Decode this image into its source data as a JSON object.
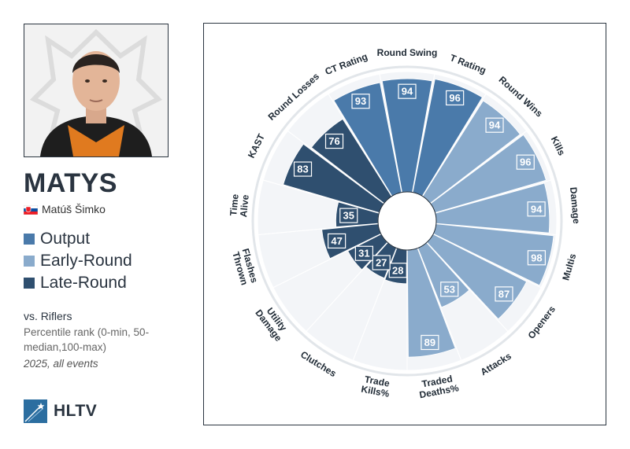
{
  "player": {
    "nickname": "MATYS",
    "full_name": "Matúš Šimko",
    "country_flag": "slovakia-flag"
  },
  "legend": [
    {
      "label": "Output",
      "color": "#4a7aaa"
    },
    {
      "label": "Early-Round",
      "color": "#8aabcc"
    },
    {
      "label": "Late-Round",
      "color": "#2f4f6f"
    }
  ],
  "comparison": "vs. Riflers",
  "description": "Percentile rank (0-min, 50-median,100-max)",
  "period": "2025, all events",
  "brand": "HLTV",
  "chart_data": {
    "type": "polar-bar",
    "range": [
      0,
      100
    ],
    "categories": [
      {
        "label": "Round Swing",
        "value": 94,
        "group": "Output"
      },
      {
        "label": "T Rating",
        "value": 96,
        "group": "Output"
      },
      {
        "label": "Round Wins",
        "value": 94,
        "group": "Early-Round"
      },
      {
        "label": "Kills",
        "value": 96,
        "group": "Early-Round"
      },
      {
        "label": "Damage",
        "value": 94,
        "group": "Early-Round"
      },
      {
        "label": "Multis",
        "value": 98,
        "group": "Early-Round"
      },
      {
        "label": "Openers",
        "value": 87,
        "group": "Early-Round"
      },
      {
        "label": "Attacks",
        "value": 53,
        "group": "Early-Round"
      },
      {
        "label": "Traded Deaths%",
        "value": 89,
        "group": "Early-Round"
      },
      {
        "label": "Trade Kills%",
        "value": 28,
        "group": "Late-Round"
      },
      {
        "label": "Clutches",
        "value": 27,
        "group": "Late-Round"
      },
      {
        "label": "Utility Damage",
        "value": 31,
        "group": "Late-Round"
      },
      {
        "label": "Flashes Thrown",
        "value": 47,
        "group": "Late-Round"
      },
      {
        "label": "Time Alive",
        "value": 35,
        "group": "Late-Round"
      },
      {
        "label": "KAST",
        "value": 83,
        "group": "Late-Round"
      },
      {
        "label": "Round Losses",
        "value": 76,
        "group": "Late-Round"
      },
      {
        "label": "CT Rating",
        "value": 93,
        "group": "Output"
      }
    ]
  }
}
